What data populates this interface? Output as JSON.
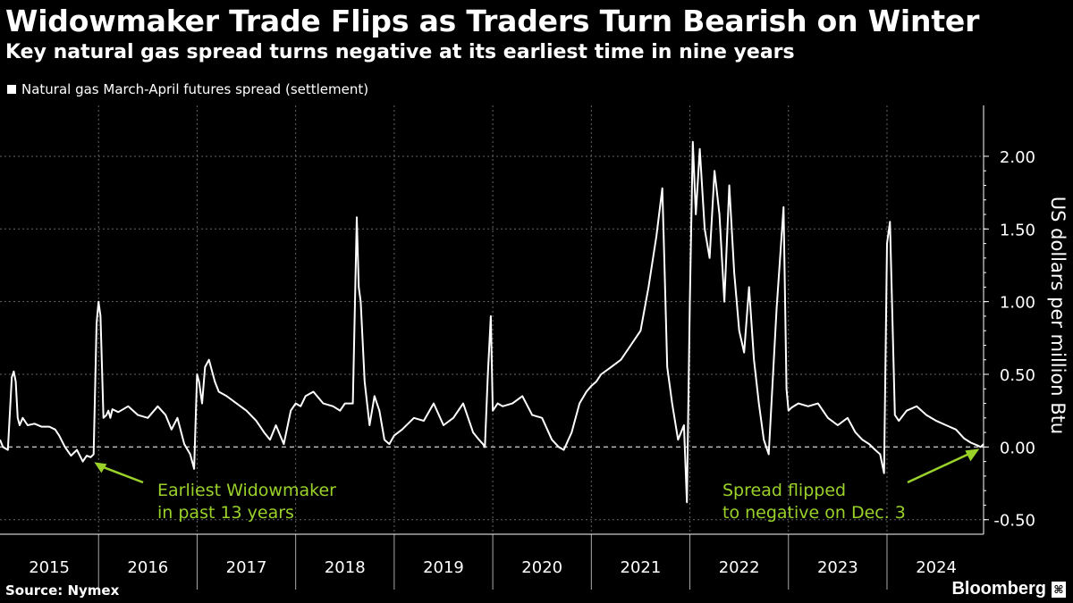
{
  "header": {
    "title": "Widowmaker Trade Flips as Traders Turn Bearish on Winter",
    "subtitle": "Key natural gas spread turns negative at its earliest time in nine years"
  },
  "footer": {
    "source": "Source: Nymex",
    "brand": "Bloomberg",
    "brand_icon": "bloomberg-terminal-icon"
  },
  "colors": {
    "background": "#000000",
    "series": "#ffffff",
    "annotation": "#9ad22a",
    "grid": "#666666"
  },
  "chart_data": {
    "type": "line",
    "title": "Widowmaker Trade Flips as Traders Turn Bearish on Winter",
    "subtitle": "Key natural gas spread turns negative at its earliest time in nine years",
    "xlabel": "",
    "ylabel": "US dollars per million Btu",
    "ylim": [
      -0.6,
      2.35
    ],
    "xlim": [
      2015.0,
      2024.98
    ],
    "yticks": [
      -0.5,
      0.0,
      0.5,
      1.0,
      1.5,
      2.0
    ],
    "ytick_labels": [
      "-0.50",
      "0.00",
      "0.50",
      "1.00",
      "1.50",
      "2.00"
    ],
    "xtick_labels": [
      "2015",
      "2016",
      "2017",
      "2018",
      "2019",
      "2020",
      "2021",
      "2022",
      "2023",
      "2024"
    ],
    "grid": true,
    "zero_line": "dashed",
    "legend": "top-left",
    "series": [
      {
        "name": "Natural gas March-April futures spread (settlement)",
        "x": [
          2015.0,
          2015.03,
          2015.08,
          2015.12,
          2015.14,
          2015.16,
          2015.18,
          2015.2,
          2015.23,
          2015.28,
          2015.35,
          2015.42,
          2015.5,
          2015.56,
          2015.6,
          2015.66,
          2015.72,
          2015.78,
          2015.84,
          2015.88,
          2015.92,
          2015.95,
          2015.98,
          2016.0,
          2016.02,
          2016.05,
          2016.08,
          2016.1,
          2016.12,
          2016.14,
          2016.2,
          2016.3,
          2016.4,
          2016.5,
          2016.6,
          2016.68,
          2016.74,
          2016.8,
          2016.87,
          2016.93,
          2016.97,
          2017.0,
          2017.02,
          2017.05,
          2017.08,
          2017.12,
          2017.18,
          2017.22,
          2017.3,
          2017.4,
          2017.5,
          2017.6,
          2017.68,
          2017.74,
          2017.8,
          2017.88,
          2017.95,
          2018.0,
          2018.05,
          2018.1,
          2018.18,
          2018.28,
          2018.38,
          2018.45,
          2018.5,
          2018.58,
          2018.62,
          2018.64,
          2018.66,
          2018.7,
          2018.75,
          2018.8,
          2018.85,
          2018.9,
          2018.95,
          2019.0,
          2019.08,
          2019.2,
          2019.3,
          2019.4,
          2019.5,
          2019.6,
          2019.7,
          2019.8,
          2019.86,
          2019.9,
          2019.92,
          2019.95,
          2019.98,
          2020.0,
          2020.05,
          2020.1,
          2020.2,
          2020.3,
          2020.4,
          2020.5,
          2020.6,
          2020.67,
          2020.72,
          2020.8,
          2020.88,
          2020.95,
          2021.0,
          2021.05,
          2021.1,
          2021.2,
          2021.3,
          2021.4,
          2021.5,
          2021.58,
          2021.66,
          2021.72,
          2021.74,
          2021.77,
          2021.82,
          2021.88,
          2021.94,
          2021.97,
          2022.0,
          2022.03,
          2022.06,
          2022.1,
          2022.15,
          2022.2,
          2022.25,
          2022.3,
          2022.35,
          2022.4,
          2022.45,
          2022.5,
          2022.55,
          2022.6,
          2022.65,
          2022.7,
          2022.75,
          2022.8,
          2022.88,
          2022.95,
          2022.98,
          2023.0,
          2023.03,
          2023.1,
          2023.2,
          2023.3,
          2023.4,
          2023.5,
          2023.6,
          2023.68,
          2023.75,
          2023.82,
          2023.88,
          2023.93,
          2023.97,
          2024.0,
          2024.03,
          2024.08,
          2024.12,
          2024.2,
          2024.3,
          2024.4,
          2024.5,
          2024.6,
          2024.7,
          2024.78,
          2024.85,
          2024.92,
          2024.95,
          2024.98
        ],
        "values": [
          0.05,
          0.0,
          -0.02,
          0.48,
          0.52,
          0.45,
          0.2,
          0.15,
          0.2,
          0.15,
          0.16,
          0.14,
          0.14,
          0.12,
          0.08,
          0.0,
          -0.06,
          -0.02,
          -0.1,
          -0.06,
          -0.07,
          -0.05,
          0.85,
          1.0,
          0.9,
          0.2,
          0.22,
          0.25,
          0.2,
          0.26,
          0.24,
          0.28,
          0.22,
          0.2,
          0.28,
          0.22,
          0.12,
          0.2,
          0.02,
          -0.05,
          -0.15,
          0.5,
          0.45,
          0.3,
          0.55,
          0.6,
          0.45,
          0.38,
          0.35,
          0.3,
          0.25,
          0.18,
          0.1,
          0.05,
          0.15,
          0.02,
          0.25,
          0.3,
          0.28,
          0.35,
          0.38,
          0.3,
          0.28,
          0.25,
          0.3,
          0.3,
          1.58,
          1.1,
          1.0,
          0.45,
          0.15,
          0.35,
          0.25,
          0.05,
          0.02,
          0.08,
          0.12,
          0.2,
          0.18,
          0.3,
          0.15,
          0.2,
          0.3,
          0.1,
          0.05,
          0.02,
          0.0,
          0.5,
          0.9,
          0.25,
          0.3,
          0.28,
          0.3,
          0.35,
          0.22,
          0.2,
          0.05,
          0.0,
          -0.02,
          0.1,
          0.3,
          0.38,
          0.42,
          0.45,
          0.5,
          0.55,
          0.6,
          0.7,
          0.8,
          1.1,
          1.45,
          1.78,
          1.3,
          0.55,
          0.3,
          0.05,
          0.15,
          -0.38,
          1.0,
          2.1,
          1.6,
          2.05,
          1.5,
          1.3,
          1.9,
          1.6,
          1.0,
          1.8,
          1.2,
          0.8,
          0.65,
          1.1,
          0.6,
          0.3,
          0.05,
          -0.05,
          0.95,
          1.65,
          0.4,
          0.25,
          0.27,
          0.3,
          0.28,
          0.3,
          0.2,
          0.15,
          0.2,
          0.1,
          0.05,
          0.02,
          -0.02,
          -0.05,
          -0.18,
          1.4,
          1.55,
          0.22,
          0.18,
          0.25,
          0.28,
          0.22,
          0.18,
          0.15,
          0.12,
          0.06,
          0.03,
          0.01,
          0.0,
          0.02
        ]
      }
    ],
    "annotations": [
      {
        "text": "Earliest Widowmaker\nin past 13 years",
        "line1": "Earliest Widowmaker",
        "line2": "in past 13 years",
        "x": 2015.92,
        "y": -0.08,
        "arrow_to": "left"
      },
      {
        "text": "Spread flipped\nto negative on Dec. 3",
        "line1": "Spread flipped",
        "line2": "to negative on Dec. 3",
        "x": 2024.92,
        "y": 0.0,
        "arrow_to": "right"
      }
    ]
  }
}
